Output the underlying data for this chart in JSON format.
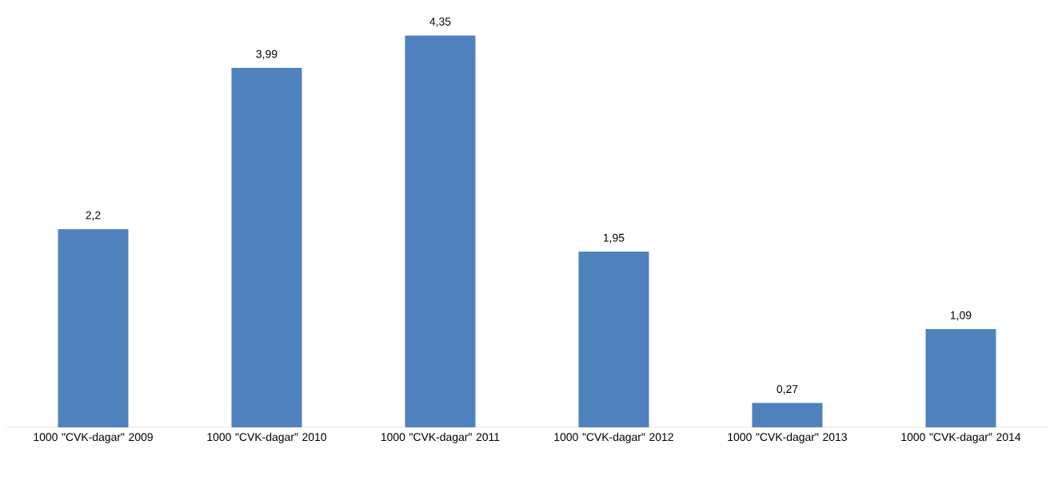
{
  "chart_data": {
    "type": "bar",
    "categories": [
      "1000 \"CVK-dagar\" 2009",
      "1000 \"CVK-dagar\" 2010",
      "1000 \"CVK-dagar\" 2011",
      "1000 \"CVK-dagar\" 2012",
      "1000 \"CVK-dagar\" 2013",
      "1000 \"CVK-dagar\" 2014"
    ],
    "values": [
      2.2,
      3.99,
      4.35,
      1.95,
      0.27,
      1.09
    ],
    "value_labels": [
      "2,2",
      "3,99",
      "4,35",
      "1,95",
      "0,27",
      "1,09"
    ],
    "color": "#4f81bd"
  }
}
